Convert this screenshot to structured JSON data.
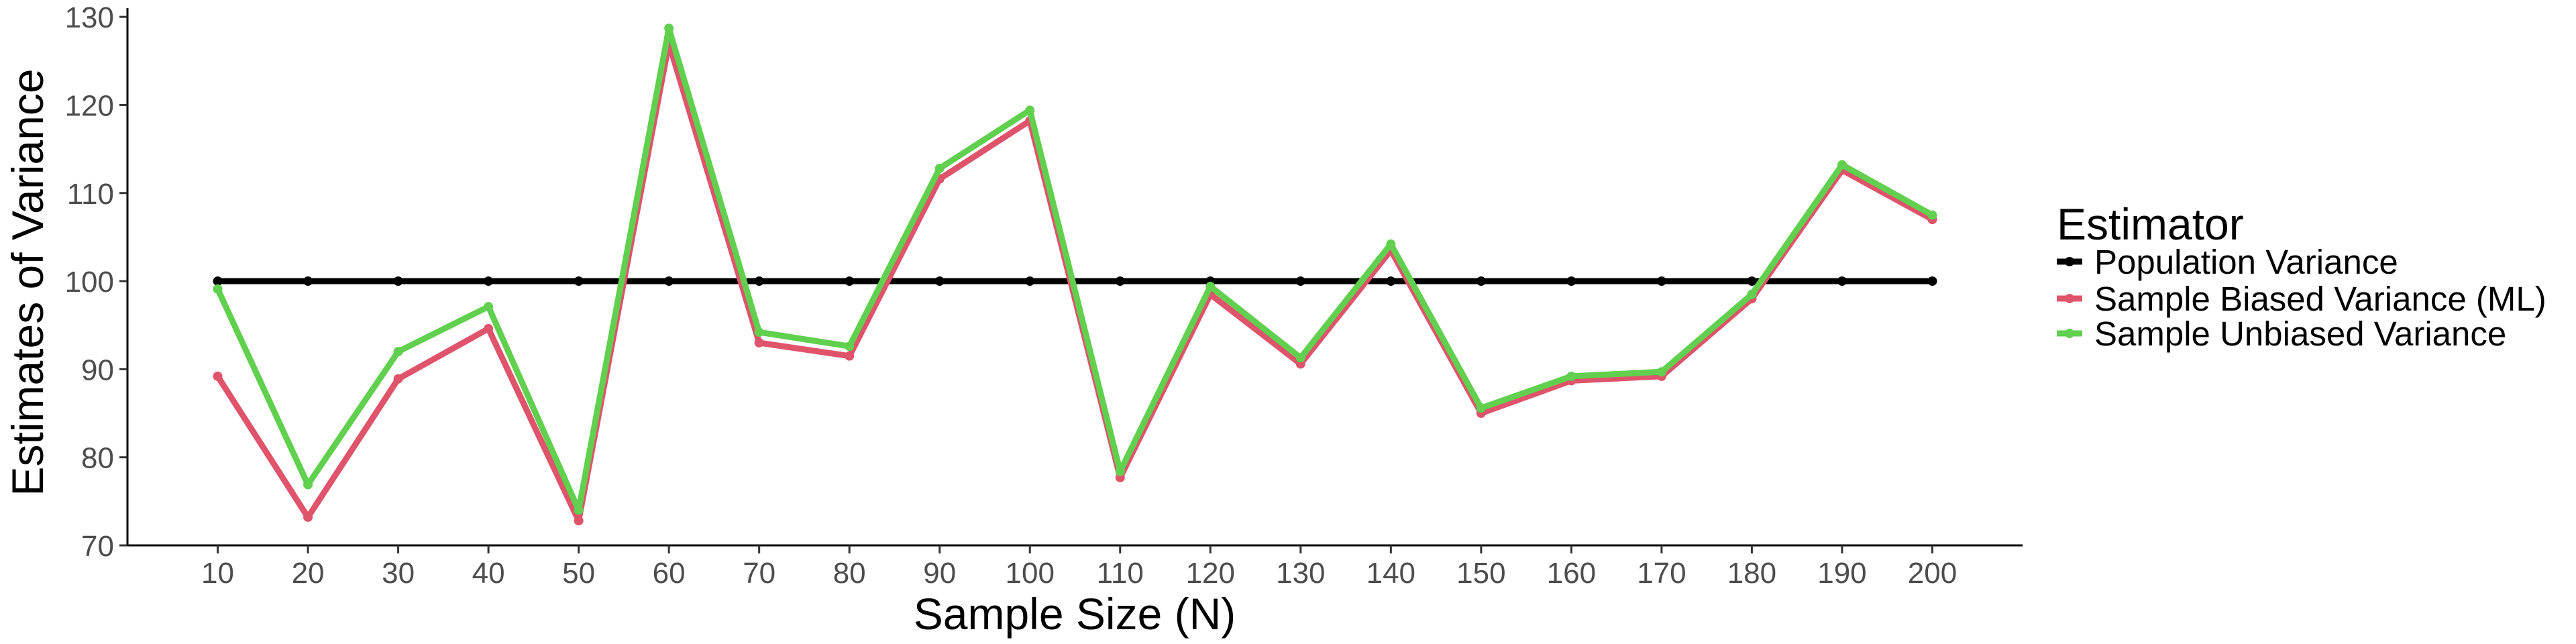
{
  "chart_data": {
    "type": "line",
    "xlabel": "Sample Size (N)",
    "ylabel": "Estimates of Variance",
    "x": [
      10,
      20,
      30,
      40,
      50,
      60,
      70,
      80,
      90,
      100,
      110,
      120,
      130,
      140,
      150,
      160,
      170,
      180,
      190,
      200
    ],
    "xlim": [
      0,
      210
    ],
    "ylim": [
      70,
      131
    ],
    "yticks": [
      70,
      80,
      90,
      100,
      110,
      120,
      130
    ],
    "grid": false,
    "legend_position": "right",
    "legend_title": "Estimator",
    "series": [
      {
        "name": "Population Variance",
        "color": "#000000",
        "values": [
          100,
          100,
          100,
          100,
          100,
          100,
          100,
          100,
          100,
          100,
          100,
          100,
          100,
          100,
          100,
          100,
          100,
          100,
          100,
          100
        ]
      },
      {
        "name": "Sample Biased Variance (ML)",
        "color": "#df536b",
        "values": [
          89.2,
          73.2,
          88.9,
          94.6,
          72.8,
          127.0,
          93.0,
          91.5,
          111.6,
          118.2,
          77.7,
          98.5,
          90.6,
          103.5,
          85.0,
          88.7,
          89.2,
          98.0,
          112.6,
          107.0
        ]
      },
      {
        "name": "Sample Unbiased Variance",
        "color": "#61d04f",
        "values": [
          99.1,
          76.9,
          92.0,
          97.1,
          74.0,
          128.7,
          94.2,
          92.6,
          112.8,
          119.4,
          78.4,
          99.4,
          91.3,
          104.2,
          85.6,
          89.2,
          89.7,
          98.5,
          113.2,
          107.5
        ]
      }
    ]
  }
}
